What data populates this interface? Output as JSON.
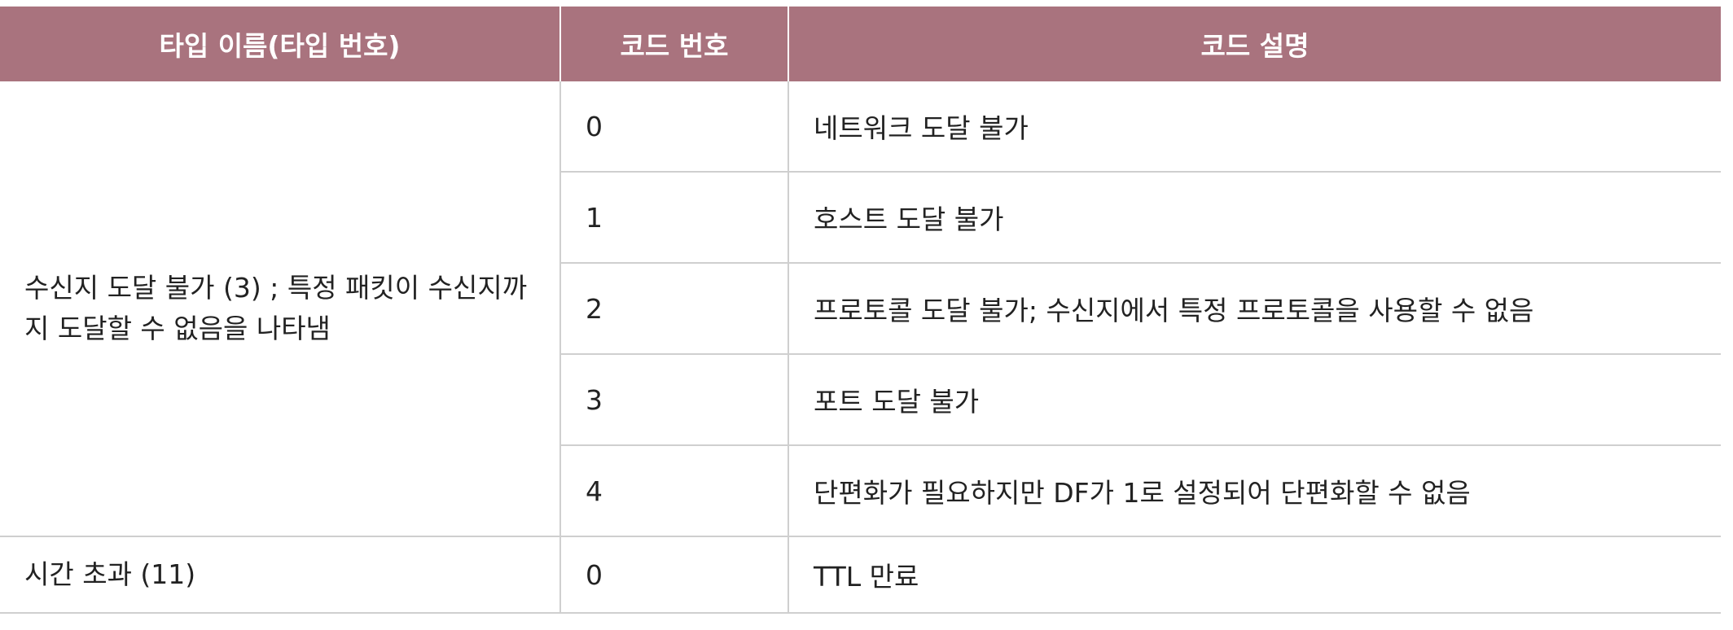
{
  "table": {
    "headers": [
      "타입 이름(타입 번호)",
      "코드 번호",
      "코드 설명"
    ],
    "groups": [
      {
        "type": "수신지 도달 불가 (3) ; 특정 패킷이 수신지까지 도달할 수 없음을 나타냄",
        "rows": [
          {
            "code": "0",
            "desc": "네트워크 도달 불가"
          },
          {
            "code": "1",
            "desc": "호스트 도달 불가"
          },
          {
            "code": "2",
            "desc": "프로토콜 도달 불가; 수신지에서 특정 프로토콜을 사용할 수 없음"
          },
          {
            "code": "3",
            "desc": "포트 도달 불가"
          },
          {
            "code": "4",
            "desc": "단편화가 필요하지만 DF가 1로 설정되어 단편화할 수 없음"
          }
        ]
      },
      {
        "type": "시간 초과 (11)",
        "rows": [
          {
            "code": "0",
            "desc": "TTL 만료"
          }
        ]
      }
    ]
  },
  "colors": {
    "header_bg": "#a9737e",
    "header_text": "#ffffff",
    "grid_line": "#cfcfcf"
  }
}
